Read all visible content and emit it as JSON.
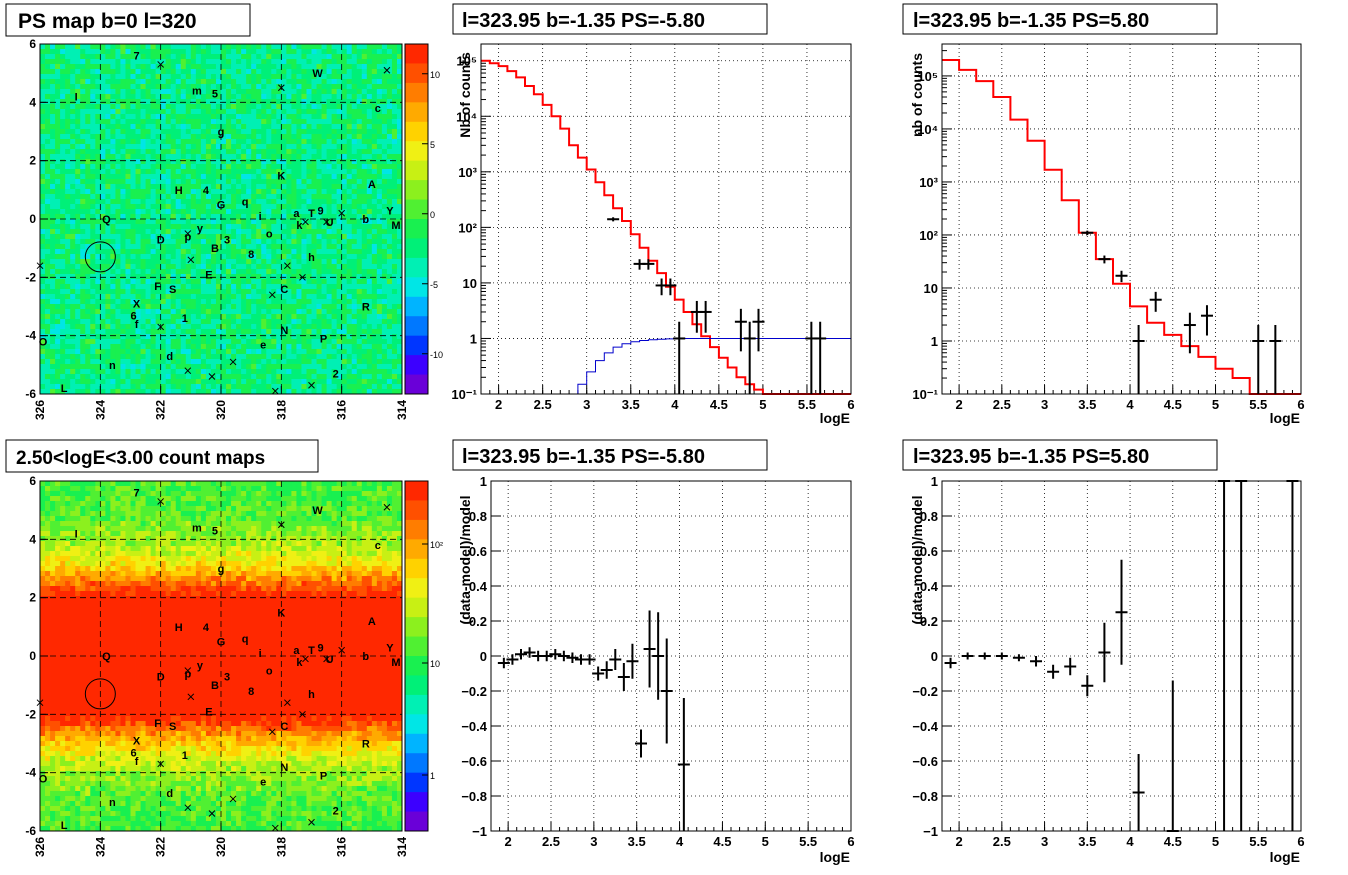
{
  "panels": {
    "map_ps": {
      "title": "PS map b=0 l=320",
      "x_ticks": [
        "326",
        "324",
        "322",
        "320",
        "318",
        "316",
        "314"
      ],
      "y_ticks": [
        "6",
        "4",
        "2",
        "0",
        "-2",
        "-4",
        "-6"
      ],
      "colorbar_ticks": [
        "10",
        "5",
        "0",
        "-5",
        "-10"
      ]
    },
    "map_counts": {
      "title": "2.50<logE<3.00 count maps",
      "x_ticks": [
        "326",
        "324",
        "322",
        "320",
        "318",
        "316",
        "314"
      ],
      "y_ticks": [
        "6",
        "4",
        "2",
        "0",
        "-2",
        "-4",
        "-6"
      ],
      "colorbar_ticks": [
        "10²",
        "10",
        "1"
      ]
    },
    "spec1": {
      "title": "l=323.95 b=-1.35 PS=-5.80",
      "ylabel": "Nb of counts",
      "xlabel": "logE"
    },
    "spec2": {
      "title": "l=323.95 b=-1.35 PS=5.80",
      "ylabel": "nb of counts",
      "xlabel": "logE"
    },
    "res1": {
      "title": "l=323.95 b=-1.35 PS=-5.80",
      "ylabel": "(data-model)/model",
      "xlabel": "logE"
    },
    "res2": {
      "title": "l=323.95 b=-1.35 PS=5.80",
      "ylabel": "(data-model)/model",
      "xlabel": "logE"
    }
  },
  "source_labels": [
    {
      "t": "7",
      "l": 322.8,
      "b": 5.6
    },
    {
      "t": "W",
      "l": 316.8,
      "b": 5.0
    },
    {
      "t": "I",
      "l": 324.8,
      "b": 4.2
    },
    {
      "t": "m",
      "l": 320.8,
      "b": 4.4
    },
    {
      "t": "5",
      "l": 320.2,
      "b": 4.3
    },
    {
      "t": "c",
      "l": 314.8,
      "b": 3.8
    },
    {
      "t": "g",
      "l": 320.0,
      "b": 3.0
    },
    {
      "t": "K",
      "l": 318.0,
      "b": 1.5
    },
    {
      "t": "A",
      "l": 315.0,
      "b": 1.2
    },
    {
      "t": "H",
      "l": 321.4,
      "b": 1.0
    },
    {
      "t": "4",
      "l": 320.5,
      "b": 1.0
    },
    {
      "t": "G",
      "l": 320.0,
      "b": 0.5
    },
    {
      "t": "q",
      "l": 319.2,
      "b": 0.6
    },
    {
      "t": "Q",
      "l": 323.8,
      "b": 0.0
    },
    {
      "t": "Y",
      "l": 314.4,
      "b": 0.3
    },
    {
      "t": "M",
      "l": 314.2,
      "b": -0.2
    },
    {
      "t": "D",
      "l": 322.0,
      "b": -0.7
    },
    {
      "t": "p",
      "l": 321.1,
      "b": -0.6
    },
    {
      "t": "y",
      "l": 320.7,
      "b": -0.3
    },
    {
      "t": "B",
      "l": 320.2,
      "b": -1.0
    },
    {
      "t": "3",
      "l": 319.8,
      "b": -0.7
    },
    {
      "t": "8",
      "l": 319.0,
      "b": -1.2
    },
    {
      "t": "o",
      "l": 318.4,
      "b": -0.5
    },
    {
      "t": "i",
      "l": 318.7,
      "b": 0.1
    },
    {
      "t": "a",
      "l": 317.5,
      "b": 0.2
    },
    {
      "t": "T",
      "l": 317.0,
      "b": 0.2
    },
    {
      "t": "k",
      "l": 317.4,
      "b": -0.2
    },
    {
      "t": "9",
      "l": 316.7,
      "b": 0.3
    },
    {
      "t": "U",
      "l": 316.4,
      "b": -0.1
    },
    {
      "t": "b",
      "l": 315.2,
      "b": 0.0
    },
    {
      "t": "h",
      "l": 317.0,
      "b": -1.3
    },
    {
      "t": "E",
      "l": 320.4,
      "b": -1.9
    },
    {
      "t": "F",
      "l": 322.1,
      "b": -2.3
    },
    {
      "t": "S",
      "l": 321.6,
      "b": -2.4
    },
    {
      "t": "C",
      "l": 317.9,
      "b": -2.4
    },
    {
      "t": "X",
      "l": 322.8,
      "b": -2.9
    },
    {
      "t": "R",
      "l": 315.2,
      "b": -3.0
    },
    {
      "t": "6",
      "l": 322.9,
      "b": -3.3
    },
    {
      "t": "f",
      "l": 322.8,
      "b": -3.6
    },
    {
      "t": "1",
      "l": 321.2,
      "b": -3.4
    },
    {
      "t": "N",
      "l": 317.9,
      "b": -3.8
    },
    {
      "t": "P",
      "l": 316.6,
      "b": -4.1
    },
    {
      "t": "O",
      "l": 325.9,
      "b": -4.2
    },
    {
      "t": "e",
      "l": 318.6,
      "b": -4.3
    },
    {
      "t": "d",
      "l": 321.7,
      "b": -4.7
    },
    {
      "t": "n",
      "l": 323.6,
      "b": -5.0
    },
    {
      "t": "2",
      "l": 316.2,
      "b": -5.3
    },
    {
      "t": "L",
      "l": 325.2,
      "b": -5.8
    }
  ],
  "crosses": [
    [
      322.0,
      5.3
    ],
    [
      318.0,
      4.5
    ],
    [
      314.5,
      5.1
    ],
    [
      316.0,
      0.2
    ],
    [
      317.8,
      -1.6
    ],
    [
      318.3,
      -2.6
    ],
    [
      317.3,
      -2.0
    ],
    [
      321.0,
      -1.4
    ],
    [
      326.0,
      -1.6
    ],
    [
      322.0,
      -3.7
    ],
    [
      317.2,
      -0.1
    ],
    [
      316.5,
      -0.1
    ],
    [
      319.6,
      -4.9
    ],
    [
      320.3,
      -5.4
    ],
    [
      321.1,
      -5.2
    ],
    [
      317.0,
      -5.7
    ],
    [
      318.2,
      -5.9
    ],
    [
      321.1,
      -0.5
    ]
  ],
  "circle": {
    "l": 324.0,
    "b": -1.3,
    "r": 0.35
  },
  "chart_data": [
    {
      "type": "line",
      "panel": "spec1",
      "x": [
        1.8,
        1.9,
        2.0,
        2.1,
        2.2,
        2.3,
        2.4,
        2.5,
        2.6,
        2.7,
        2.8,
        2.9,
        3.0,
        3.1,
        3.2,
        3.3,
        3.4,
        3.5,
        3.6,
        3.7,
        3.8,
        3.9,
        4.0,
        4.1,
        4.2,
        4.3,
        4.4,
        4.5,
        4.6,
        4.7,
        4.8,
        4.9,
        5.0,
        5.1,
        5.2,
        5.3,
        5.4,
        5.5,
        5.6,
        5.7,
        5.8,
        5.9,
        6.0
      ],
      "series": [
        {
          "name": "model_ps",
          "values": [
            100000,
            90000,
            80000,
            65000,
            50000,
            35000,
            25000,
            16000,
            10000,
            6000,
            3000,
            1800,
            1100,
            650,
            380,
            220,
            130,
            75,
            43,
            25,
            15,
            8.5,
            5,
            3,
            1.8,
            1.1,
            0.7,
            0.45,
            0.3,
            0.2,
            0.15,
            0.12,
            0.1,
            0.1,
            0.1,
            0.1,
            0.1,
            0.1,
            0.1,
            0.1,
            0.1,
            0.1,
            0.1
          ]
        },
        {
          "name": "ps_component",
          "values": [
            0.1,
            0.1,
            0.1,
            0.1,
            0.1,
            0.1,
            0.1,
            0.1,
            0.1,
            0.1,
            0.1,
            0.15,
            0.25,
            0.4,
            0.55,
            0.7,
            0.8,
            0.87,
            0.92,
            0.95,
            0.97,
            0.98,
            0.99,
            1,
            1,
            1,
            1,
            1,
            1,
            1,
            1,
            1,
            1,
            1,
            1,
            1,
            1,
            1,
            1,
            1,
            1,
            1,
            1
          ]
        }
      ],
      "points": [
        {
          "x": 3.3,
          "y": 140
        },
        {
          "x": 3.6,
          "y": 22
        },
        {
          "x": 3.7,
          "y": 22
        },
        {
          "x": 3.85,
          "y": 9
        },
        {
          "x": 3.95,
          "y": 9
        },
        {
          "x": 4.05,
          "y": 1
        },
        {
          "x": 4.25,
          "y": 3
        },
        {
          "x": 4.35,
          "y": 3
        },
        {
          "x": 4.75,
          "y": 2
        },
        {
          "x": 4.85,
          "y": 1
        },
        {
          "x": 4.95,
          "y": 2
        },
        {
          "x": 5.55,
          "y": 1
        },
        {
          "x": 5.65,
          "y": 1
        }
      ],
      "xlim": [
        1.8,
        6.0
      ],
      "ylim": [
        0.1,
        200000
      ],
      "yscale": "log"
    },
    {
      "type": "line",
      "panel": "spec2",
      "x": [
        1.8,
        2.0,
        2.2,
        2.4,
        2.6,
        2.8,
        3.0,
        3.2,
        3.4,
        3.6,
        3.8,
        4.0,
        4.2,
        4.4,
        4.6,
        4.8,
        5.0,
        5.2,
        5.4,
        5.6,
        5.8,
        6.0
      ],
      "series": [
        {
          "name": "model",
          "values": [
            200000,
            130000,
            80000,
            40000,
            15000,
            6000,
            1700,
            450,
            110,
            35,
            12,
            4.5,
            2.2,
            1.3,
            0.8,
            0.5,
            0.3,
            0.2,
            0.1,
            0.1,
            0.1,
            0.1
          ]
        }
      ],
      "points": [
        {
          "x": 3.5,
          "y": 110
        },
        {
          "x": 3.7,
          "y": 35
        },
        {
          "x": 3.9,
          "y": 17
        },
        {
          "x": 4.1,
          "y": 1
        },
        {
          "x": 4.3,
          "y": 6
        },
        {
          "x": 4.7,
          "y": 2
        },
        {
          "x": 4.9,
          "y": 3
        },
        {
          "x": 5.5,
          "y": 1
        },
        {
          "x": 5.7,
          "y": 1
        }
      ],
      "xlim": [
        1.8,
        6.0
      ],
      "ylim": [
        0.1,
        400000
      ],
      "yscale": "log"
    },
    {
      "type": "scatter",
      "panel": "res1",
      "points": [
        {
          "x": 1.95,
          "y": -0.04,
          "e": 0.03
        },
        {
          "x": 2.05,
          "y": -0.02,
          "e": 0.03
        },
        {
          "x": 2.15,
          "y": 0.01,
          "e": 0.03
        },
        {
          "x": 2.25,
          "y": 0.02,
          "e": 0.03
        },
        {
          "x": 2.35,
          "y": 0.0,
          "e": 0.03
        },
        {
          "x": 2.45,
          "y": 0.0,
          "e": 0.03
        },
        {
          "x": 2.55,
          "y": 0.01,
          "e": 0.03
        },
        {
          "x": 2.65,
          "y": 0.0,
          "e": 0.03
        },
        {
          "x": 2.75,
          "y": -0.01,
          "e": 0.03
        },
        {
          "x": 2.85,
          "y": -0.02,
          "e": 0.03
        },
        {
          "x": 2.95,
          "y": -0.02,
          "e": 0.03
        },
        {
          "x": 3.05,
          "y": -0.1,
          "e": 0.04
        },
        {
          "x": 3.15,
          "y": -0.08,
          "e": 0.05
        },
        {
          "x": 3.25,
          "y": -0.02,
          "e": 0.06
        },
        {
          "x": 3.35,
          "y": -0.12,
          "e": 0.08
        },
        {
          "x": 3.45,
          "y": -0.03,
          "e": 0.1
        },
        {
          "x": 3.55,
          "y": -0.5,
          "e": 0.08
        },
        {
          "x": 3.65,
          "y": 0.04,
          "e": 0.22
        },
        {
          "x": 3.75,
          "y": 0.0,
          "e": 0.25
        },
        {
          "x": 3.85,
          "y": -0.2,
          "e": 0.3
        },
        {
          "x": 4.05,
          "y": -0.62,
          "e": 0.38
        }
      ],
      "xlim": [
        1.8,
        6.0
      ],
      "ylim": [
        -1,
        1
      ],
      "yticks": [
        -1,
        -0.8,
        -0.6,
        -0.4,
        -0.2,
        0,
        0.2,
        0.4,
        0.6,
        0.8,
        1
      ]
    },
    {
      "type": "scatter",
      "panel": "res2",
      "points": [
        {
          "x": 1.9,
          "y": -0.04,
          "e": 0.03
        },
        {
          "x": 2.1,
          "y": 0.0,
          "e": 0.02
        },
        {
          "x": 2.3,
          "y": 0.0,
          "e": 0.02
        },
        {
          "x": 2.5,
          "y": 0.0,
          "e": 0.02
        },
        {
          "x": 2.7,
          "y": -0.01,
          "e": 0.02
        },
        {
          "x": 2.9,
          "y": -0.03,
          "e": 0.03
        },
        {
          "x": 3.1,
          "y": -0.09,
          "e": 0.04
        },
        {
          "x": 3.3,
          "y": -0.06,
          "e": 0.05
        },
        {
          "x": 3.5,
          "y": -0.17,
          "e": 0.06
        },
        {
          "x": 3.7,
          "y": 0.02,
          "e": 0.17
        },
        {
          "x": 3.9,
          "y": 0.25,
          "e": 0.3
        },
        {
          "x": 4.1,
          "y": -0.78,
          "e": 0.22
        },
        {
          "x": 4.5,
          "y": -1.0,
          "e": 0.86
        },
        {
          "x": 5.1,
          "y": 1.0,
          "e": 3.0
        },
        {
          "x": 5.3,
          "y": 1.0,
          "e": 3.0
        },
        {
          "x": 5.9,
          "y": 1.0,
          "e": 3.0
        }
      ],
      "xlim": [
        1.8,
        6.0
      ],
      "ylim": [
        -1,
        1
      ],
      "yticks": [
        -1,
        -0.8,
        -0.6,
        -0.4,
        -0.2,
        0,
        0.2,
        0.4,
        0.6,
        0.8,
        1
      ]
    }
  ]
}
